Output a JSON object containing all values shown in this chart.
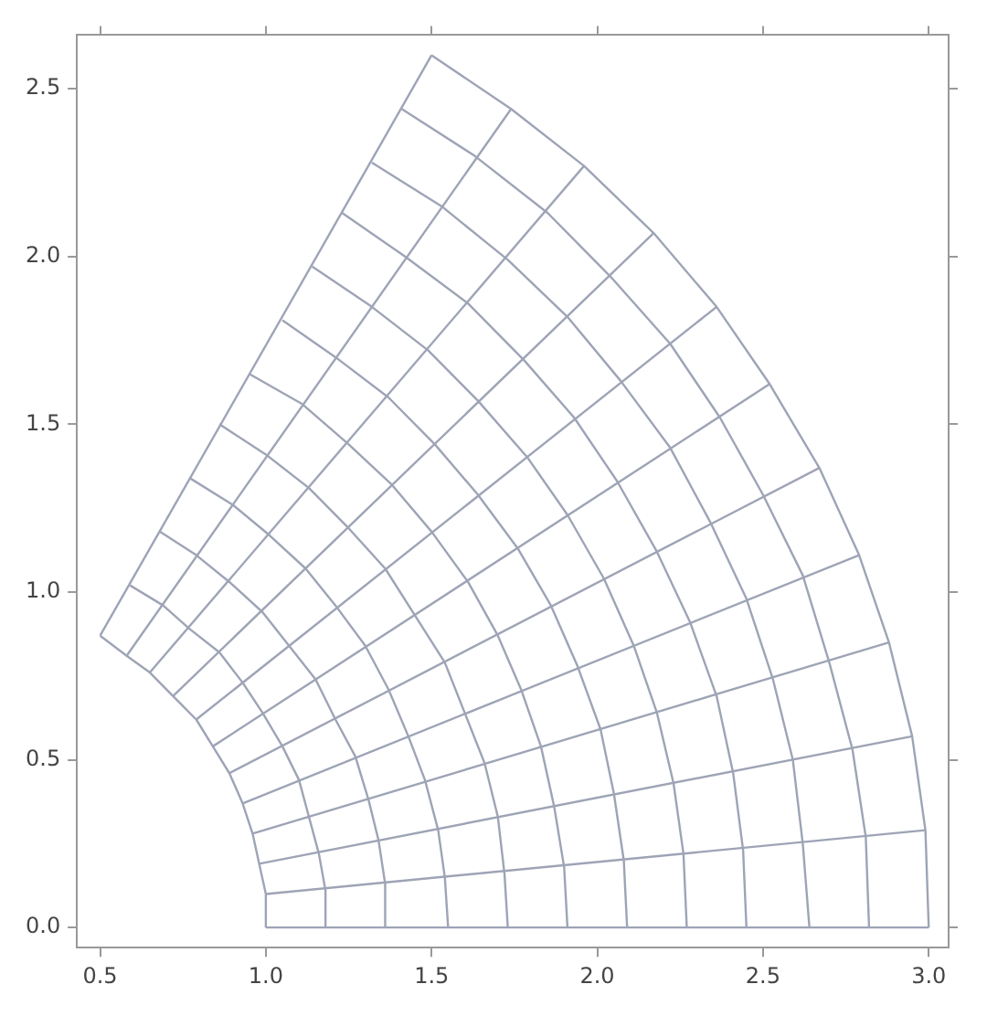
{
  "chart_data": {
    "type": "line",
    "xlim": [
      0.43,
      3.06
    ],
    "ylim": [
      -0.06,
      2.66
    ],
    "xticks": [
      {
        "value": 0.5,
        "label": "0.5"
      },
      {
        "value": 1,
        "label": "1.0"
      },
      {
        "value": 1.5,
        "label": "1.5"
      },
      {
        "value": 2,
        "label": "2.0"
      },
      {
        "value": 2.5,
        "label": "2.5"
      },
      {
        "value": 3,
        "label": "3.0"
      }
    ],
    "yticks": [
      {
        "value": 0,
        "label": "0.0"
      },
      {
        "value": 0.5,
        "label": "0.5"
      },
      {
        "value": 1,
        "label": "1.0"
      },
      {
        "value": 1.5,
        "label": "1.5"
      },
      {
        "value": 2,
        "label": "2.0"
      },
      {
        "value": 2.5,
        "label": "2.5"
      }
    ],
    "grid": false,
    "legend": false,
    "series": [
      {
        "color": "#9ea4b6",
        "x": [
          1,
          1,
          0.98,
          0.96,
          0.93,
          0.89,
          0.84,
          0.79,
          0.72,
          0.65,
          0.58,
          0.5
        ],
        "values": [
          0,
          0.1,
          0.19,
          0.28,
          0.37,
          0.46,
          0.54,
          0.62,
          0.69,
          0.76,
          0.81,
          0.87
        ]
      },
      {
        "color": "#9ea4b6",
        "x": [
          1.18,
          1.18,
          1.16,
          1.13,
          1.1,
          1.05,
          0.99,
          0.93,
          0.86,
          0.77,
          0.69,
          0.59
        ],
        "values": [
          0,
          0.11,
          0.22,
          0.33,
          0.44,
          0.54,
          0.64,
          0.73,
          0.82,
          0.89,
          0.96,
          1.02
        ]
      },
      {
        "color": "#9ea4b6",
        "x": [
          1.36,
          1.36,
          1.34,
          1.31,
          1.27,
          1.21,
          1.15,
          1.07,
          0.99,
          0.89,
          0.79,
          0.68
        ],
        "values": [
          0,
          0.13,
          0.26,
          0.38,
          0.51,
          0.62,
          0.74,
          0.84,
          0.94,
          1.03,
          1.11,
          1.18
        ]
      },
      {
        "color": "#9ea4b6",
        "x": [
          1.55,
          1.54,
          1.52,
          1.48,
          1.43,
          1.37,
          1.3,
          1.21,
          1.12,
          1.01,
          0.9,
          0.77
        ],
        "values": [
          0,
          0.15,
          0.29,
          0.44,
          0.57,
          0.71,
          0.84,
          0.96,
          1.07,
          1.17,
          1.26,
          1.34
        ]
      },
      {
        "color": "#9ea4b6",
        "x": [
          1.73,
          1.72,
          1.7,
          1.66,
          1.6,
          1.54,
          1.45,
          1.36,
          1.25,
          1.13,
          1,
          0.86
        ],
        "values": [
          0,
          0.16,
          0.33,
          0.49,
          0.64,
          0.79,
          0.93,
          1.07,
          1.19,
          1.31,
          1.41,
          1.5
        ]
      },
      {
        "color": "#9ea4b6",
        "x": [
          1.91,
          1.9,
          1.87,
          1.83,
          1.77,
          1.7,
          1.61,
          1.5,
          1.38,
          1.25,
          1.11,
          0.95
        ],
        "values": [
          0,
          0.18,
          0.36,
          0.54,
          0.71,
          0.87,
          1.03,
          1.18,
          1.32,
          1.44,
          1.56,
          1.65
        ]
      },
      {
        "color": "#9ea4b6",
        "x": [
          2.09,
          2.08,
          2.05,
          2.01,
          1.94,
          1.86,
          1.76,
          1.64,
          1.51,
          1.37,
          1.21,
          1.05
        ],
        "values": [
          0,
          0.2,
          0.4,
          0.59,
          0.78,
          0.96,
          1.13,
          1.29,
          1.44,
          1.58,
          1.7,
          1.81
        ]
      },
      {
        "color": "#9ea4b6",
        "x": [
          2.27,
          2.26,
          2.23,
          2.18,
          2.11,
          2.02,
          1.91,
          1.79,
          1.64,
          1.49,
          1.32,
          1.14
        ],
        "values": [
          0,
          0.22,
          0.43,
          0.64,
          0.84,
          1.04,
          1.23,
          1.4,
          1.57,
          1.72,
          1.85,
          1.97
        ]
      },
      {
        "color": "#9ea4b6",
        "x": [
          2.45,
          2.44,
          2.41,
          2.36,
          2.28,
          2.18,
          2.06,
          1.93,
          1.78,
          1.61,
          1.42,
          1.23
        ],
        "values": [
          0,
          0.23,
          0.46,
          0.69,
          0.91,
          1.12,
          1.33,
          1.52,
          1.69,
          1.86,
          2,
          2.13
        ]
      },
      {
        "color": "#9ea4b6",
        "x": [
          2.64,
          2.62,
          2.59,
          2.53,
          2.45,
          2.34,
          2.22,
          2.07,
          1.91,
          1.73,
          1.53,
          1.32
        ],
        "values": [
          0,
          0.25,
          0.5,
          0.74,
          0.98,
          1.21,
          1.43,
          1.63,
          1.82,
          1.99,
          2.15,
          2.28
        ]
      },
      {
        "color": "#9ea4b6",
        "x": [
          2.82,
          2.81,
          2.77,
          2.7,
          2.62,
          2.5,
          2.37,
          2.22,
          2.04,
          1.85,
          1.63,
          1.41
        ],
        "values": [
          0,
          0.27,
          0.53,
          0.79,
          1.05,
          1.29,
          1.52,
          1.74,
          1.94,
          2.13,
          2.3,
          2.44
        ]
      },
      {
        "color": "#9ea4b6",
        "x": [
          3,
          2.99,
          2.95,
          2.88,
          2.79,
          2.67,
          2.52,
          2.36,
          2.17,
          1.96,
          1.74,
          1.5
        ],
        "values": [
          0,
          0.29,
          0.57,
          0.85,
          1.11,
          1.37,
          1.62,
          1.85,
          2.07,
          2.27,
          2.44,
          2.6
        ]
      },
      {
        "color": "#9ea4b6",
        "x": [
          1,
          3
        ],
        "values": [
          0,
          0
        ]
      },
      {
        "color": "#9ea4b6",
        "x": [
          1,
          2.99
        ],
        "values": [
          0.1,
          0.29
        ]
      },
      {
        "color": "#9ea4b6",
        "x": [
          0.98,
          2.95
        ],
        "values": [
          0.19,
          0.57
        ]
      },
      {
        "color": "#9ea4b6",
        "x": [
          0.96,
          2.88
        ],
        "values": [
          0.28,
          0.85
        ]
      },
      {
        "color": "#9ea4b6",
        "x": [
          0.93,
          2.79
        ],
        "values": [
          0.37,
          1.11
        ]
      },
      {
        "color": "#9ea4b6",
        "x": [
          0.89,
          2.67
        ],
        "values": [
          0.46,
          1.37
        ]
      },
      {
        "color": "#9ea4b6",
        "x": [
          0.84,
          2.52
        ],
        "values": [
          0.54,
          1.62
        ]
      },
      {
        "color": "#9ea4b6",
        "x": [
          0.79,
          2.36
        ],
        "values": [
          0.62,
          1.85
        ]
      },
      {
        "color": "#9ea4b6",
        "x": [
          0.72,
          2.17
        ],
        "values": [
          0.69,
          2.07
        ]
      },
      {
        "color": "#9ea4b6",
        "x": [
          0.65,
          1.96
        ],
        "values": [
          0.76,
          2.27
        ]
      },
      {
        "color": "#9ea4b6",
        "x": [
          0.58,
          1.74
        ],
        "values": [
          0.81,
          2.44
        ]
      },
      {
        "color": "#9ea4b6",
        "x": [
          0.5,
          1.5
        ],
        "values": [
          0.87,
          2.6
        ]
      }
    ]
  }
}
